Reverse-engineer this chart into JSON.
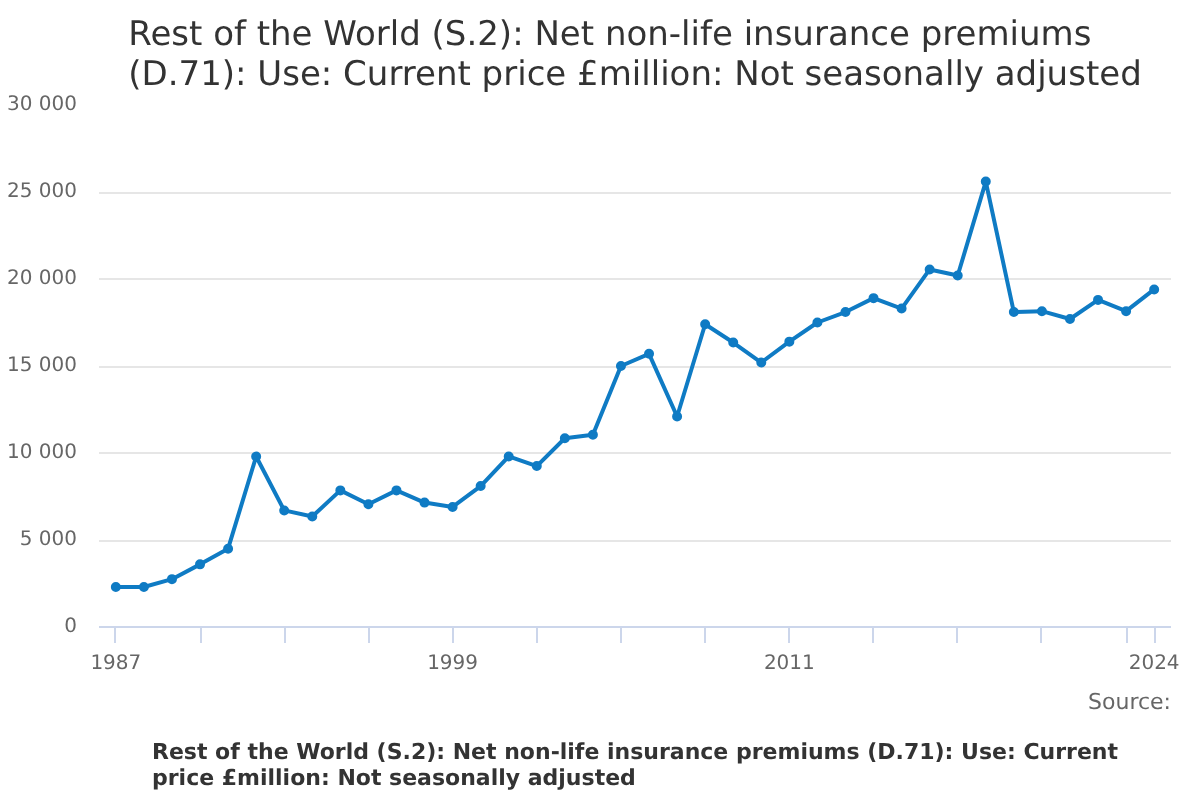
{
  "chart_data": {
    "type": "line",
    "title": "Rest of the World (S.2): Net non-life insurance premiums (D.71): Use: Current price £million: Not seasonally adjusted",
    "x": [
      1987,
      1988,
      1989,
      1990,
      1991,
      1992,
      1993,
      1994,
      1995,
      1996,
      1997,
      1998,
      1999,
      2000,
      2001,
      2002,
      2003,
      2004,
      2005,
      2006,
      2007,
      2008,
      2009,
      2010,
      2011,
      2012,
      2013,
      2014,
      2015,
      2016,
      2017,
      2018,
      2019,
      2020,
      2021,
      2022,
      2023,
      2024
    ],
    "series": [
      {
        "color": "#0f7bc4",
        "values": [
          2300,
          2300,
          2750,
          3600,
          4500,
          9800,
          6700,
          6350,
          7850,
          7050,
          7850,
          7150,
          6900,
          8100,
          9800,
          9250,
          10850,
          11050,
          15000,
          15700,
          12100,
          17400,
          16350,
          15200,
          16400,
          17500,
          18100,
          18900,
          18300,
          20550,
          20200,
          25600,
          18100,
          18150,
          17700,
          18800,
          18150,
          19400
        ]
      }
    ],
    "xlim": [
      1986.4,
      2024.6
    ],
    "xticks": [
      1987,
      {
        "value": 1990,
        "label": null
      },
      {
        "value": 1993,
        "label": null
      },
      {
        "value": 1996,
        "label": null
      },
      1999,
      {
        "value": 2002,
        "label": null
      },
      {
        "value": 2005,
        "label": null
      },
      {
        "value": 2008,
        "label": null
      },
      2011,
      {
        "value": 2014,
        "label": null
      },
      {
        "value": 2017,
        "label": null
      },
      {
        "value": 2020,
        "label": null
      },
      {
        "value": 2023,
        "label": null
      },
      2024
    ],
    "ylim": [
      0,
      30000
    ],
    "yticks": [
      0,
      {
        "value": 5000,
        "label": "5 000"
      },
      {
        "value": 10000,
        "label": "10 000"
      },
      {
        "value": 15000,
        "label": "15 000"
      },
      {
        "value": 20000,
        "label": "20 000"
      },
      {
        "value": 25000,
        "label": "25 000"
      },
      {
        "value": 30000,
        "label": "30 000"
      }
    ],
    "grid": "y",
    "marker": "circle",
    "line_style": "solid",
    "annotations": [
      "Rest of the World (S.2): Net non-life insurance premiums (D.71): Use: Current price £million: Not seasonally adjusted",
      "Source:"
    ]
  }
}
